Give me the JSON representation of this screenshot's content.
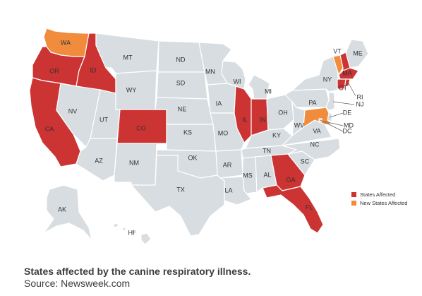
{
  "colors": {
    "affected": "#cc3333",
    "new_affected": "#f08c3c",
    "unaffected": "#d7dde1",
    "border": "#ffffff",
    "label": "#333333"
  },
  "states": [
    {
      "id": "WA",
      "label": "WA",
      "status": "new_affected"
    },
    {
      "id": "OR",
      "label": "OR",
      "status": "affected"
    },
    {
      "id": "CA",
      "label": "CA",
      "status": "affected"
    },
    {
      "id": "ID",
      "label": "ID",
      "status": "affected"
    },
    {
      "id": "NV",
      "label": "NV",
      "status": "unaffected"
    },
    {
      "id": "MT",
      "label": "MT",
      "status": "unaffected"
    },
    {
      "id": "WY",
      "label": "WY",
      "status": "unaffected"
    },
    {
      "id": "UT",
      "label": "UT",
      "status": "unaffected"
    },
    {
      "id": "AZ",
      "label": "AZ",
      "status": "unaffected"
    },
    {
      "id": "CO",
      "label": "CO",
      "status": "affected"
    },
    {
      "id": "NM",
      "label": "NM",
      "status": "unaffected"
    },
    {
      "id": "ND",
      "label": "ND",
      "status": "unaffected"
    },
    {
      "id": "SD",
      "label": "SD",
      "status": "unaffected"
    },
    {
      "id": "NE",
      "label": "NE",
      "status": "unaffected"
    },
    {
      "id": "KS",
      "label": "KS",
      "status": "unaffected"
    },
    {
      "id": "OK",
      "label": "OK",
      "status": "unaffected"
    },
    {
      "id": "TX",
      "label": "TX",
      "status": "unaffected"
    },
    {
      "id": "MN",
      "label": "MN",
      "status": "unaffected"
    },
    {
      "id": "IA",
      "label": "IA",
      "status": "unaffected"
    },
    {
      "id": "MO",
      "label": "MO",
      "status": "unaffected"
    },
    {
      "id": "AR",
      "label": "AR",
      "status": "unaffected"
    },
    {
      "id": "LA",
      "label": "LA",
      "status": "unaffected"
    },
    {
      "id": "WI",
      "label": "WI",
      "status": "unaffected"
    },
    {
      "id": "IL",
      "label": "IL",
      "status": "affected"
    },
    {
      "id": "MI",
      "label": "MI",
      "status": "unaffected"
    },
    {
      "id": "IN",
      "label": "IN",
      "status": "affected"
    },
    {
      "id": "OH",
      "label": "OH",
      "status": "unaffected"
    },
    {
      "id": "KY",
      "label": "KY",
      "status": "unaffected"
    },
    {
      "id": "TN",
      "label": "TN",
      "status": "unaffected"
    },
    {
      "id": "MS",
      "label": "MS",
      "status": "unaffected"
    },
    {
      "id": "AL",
      "label": "AL",
      "status": "unaffected"
    },
    {
      "id": "GA",
      "label": "GA",
      "status": "affected"
    },
    {
      "id": "FL",
      "label": "FL",
      "status": "affected"
    },
    {
      "id": "SC",
      "label": "SC",
      "status": "unaffected"
    },
    {
      "id": "NC",
      "label": "NC",
      "status": "unaffected"
    },
    {
      "id": "VA",
      "label": "VA",
      "status": "unaffected"
    },
    {
      "id": "WV",
      "label": "WV",
      "status": "unaffected"
    },
    {
      "id": "PA",
      "label": "PA",
      "status": "unaffected"
    },
    {
      "id": "NY",
      "label": "NY",
      "status": "unaffected"
    },
    {
      "id": "VT",
      "label": "VT",
      "status": "new_affected"
    },
    {
      "id": "NH",
      "label": "",
      "status": "affected"
    },
    {
      "id": "ME",
      "label": "ME",
      "status": "unaffected"
    },
    {
      "id": "MA",
      "label": "MA",
      "status": "affected"
    },
    {
      "id": "RI",
      "label": "RI",
      "status": "affected"
    },
    {
      "id": "CT",
      "label": "CT",
      "status": "affected"
    },
    {
      "id": "NJ",
      "label": "NJ",
      "status": "unaffected"
    },
    {
      "id": "DE",
      "label": "DE",
      "status": "unaffected"
    },
    {
      "id": "MD",
      "label": "MD",
      "status": "new_affected"
    },
    {
      "id": "DC",
      "label": "DC",
      "status": "unaffected"
    },
    {
      "id": "AK",
      "label": "AK",
      "status": "unaffected"
    },
    {
      "id": "HI",
      "label": "HI",
      "status": "unaffected"
    }
  ],
  "legend": [
    {
      "label": "States Affected",
      "status": "affected"
    },
    {
      "label": "New States Affected",
      "status": "new_affected"
    }
  ],
  "caption": {
    "title": "States affected by the canine respiratory illness.",
    "source": "Source: Newsweek.com"
  }
}
